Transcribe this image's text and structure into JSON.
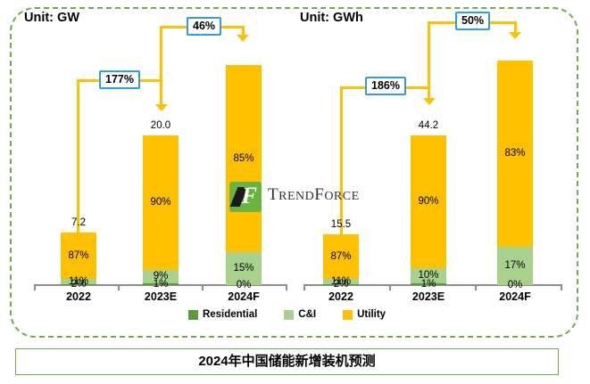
{
  "charts_meta": {
    "left_unit": "Unit: GW",
    "right_unit": "Unit: GWh"
  },
  "chart_data": [
    {
      "type": "bar",
      "stacked": true,
      "unit": "GW",
      "categories": [
        "2022",
        "2023E",
        "2024F"
      ],
      "totals": [
        7.2,
        20.0,
        null
      ],
      "total_labels": [
        "7.2",
        "20.0",
        ""
      ],
      "series": [
        {
          "name": "Residential",
          "color": "#5B9B3C",
          "values_pct": [
            2,
            1,
            0
          ],
          "labels": [
            "2%",
            "1%",
            "0%"
          ]
        },
        {
          "name": "C&I",
          "color": "#A9D18E",
          "values_pct": [
            11,
            9,
            15
          ],
          "labels": [
            "11%",
            "9%",
            "15%"
          ]
        },
        {
          "name": "Utility",
          "color": "#FFC000",
          "values_pct": [
            87,
            90,
            85
          ],
          "labels": [
            "87%",
            "90%",
            "85%"
          ]
        }
      ],
      "growth": [
        "177%",
        "46%"
      ],
      "grid": false,
      "legend_position": "bottom"
    },
    {
      "type": "bar",
      "stacked": true,
      "unit": "GWh",
      "categories": [
        "2022",
        "2023E",
        "2024F"
      ],
      "totals": [
        15.5,
        44.2,
        null
      ],
      "total_labels": [
        "15.5",
        "44.2",
        ""
      ],
      "series": [
        {
          "name": "Residential",
          "color": "#5B9B3C",
          "values_pct": [
            2,
            1,
            0
          ],
          "labels": [
            "2%",
            "1%",
            "0%"
          ]
        },
        {
          "name": "C&I",
          "color": "#A9D18E",
          "values_pct": [
            11,
            10,
            17
          ],
          "labels": [
            "11%",
            "10%",
            "17%"
          ]
        },
        {
          "name": "Utility",
          "color": "#FFC000",
          "values_pct": [
            87,
            90,
            83
          ],
          "labels": [
            "87%",
            "90%",
            "83%"
          ]
        }
      ],
      "growth": [
        "186%",
        "50%"
      ],
      "grid": false,
      "legend_position": "bottom"
    }
  ],
  "legend": [
    {
      "label": "Residential",
      "color": "#5B9B3C"
    },
    {
      "label": "C&I",
      "color": "#A9D18E"
    },
    {
      "label": "Utility",
      "color": "#FFC000"
    }
  ],
  "logo": {
    "name": "TrendForce",
    "part1": "T",
    "part2": "REND",
    "part3": "F",
    "part4": "ORCE"
  },
  "footer": {
    "title": "2024年中国储能新增装机预测"
  },
  "colors": {
    "utility": "#FFC000",
    "ci": "#A9D18E",
    "residential": "#5B9B3C",
    "frame_green": "#70AD47",
    "arrow_yellow": "#FFC000",
    "callout_border_blue": "#2E9FD9",
    "axis_gray": "#8C8C8C"
  }
}
